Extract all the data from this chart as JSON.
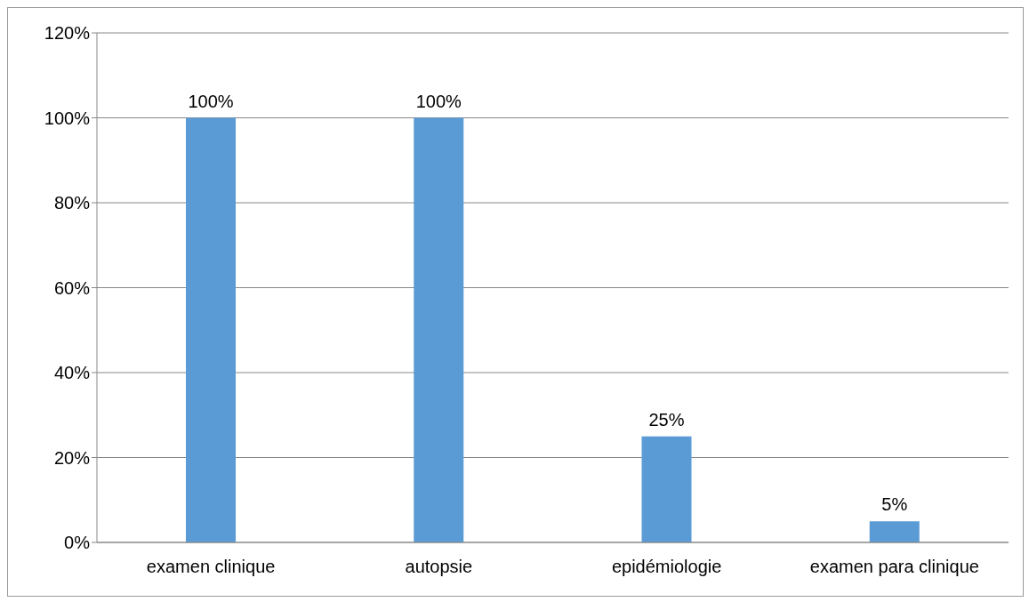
{
  "chart_data": {
    "type": "bar",
    "categories": [
      "examen clinique",
      "autopsie",
      "epidémiologie",
      "examen para clinique"
    ],
    "values": [
      100,
      100,
      25,
      5
    ],
    "color": "#5b9bd5",
    "value_labels": [
      "100%",
      "100%",
      "25%",
      "5%"
    ],
    "ylim": [
      0,
      120
    ],
    "yticks": [
      {
        "value": 0,
        "label": "0%"
      },
      {
        "value": 20,
        "label": "20%"
      },
      {
        "value": 40,
        "label": "40%"
      },
      {
        "value": 60,
        "label": "60%"
      },
      {
        "value": 80,
        "label": "80%"
      },
      {
        "value": 100,
        "label": "100%"
      },
      {
        "value": 120,
        "label": "120%"
      }
    ],
    "grid": "y"
  }
}
